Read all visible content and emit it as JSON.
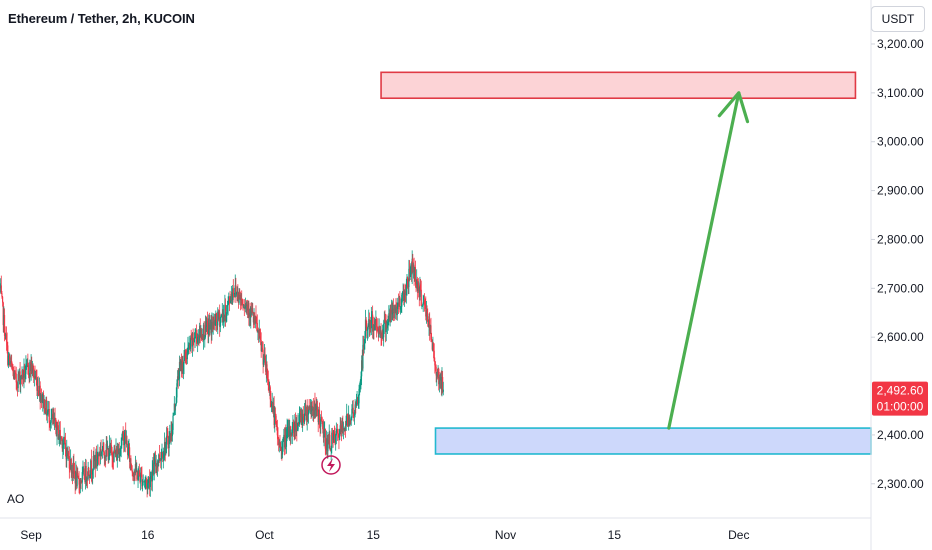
{
  "header": {
    "title": "Ethereum / Tether, 2h, KUCOIN"
  },
  "axis": {
    "currency": "USDT"
  },
  "indicator": {
    "label": "AO"
  },
  "last_price": {
    "value": "2,492.60",
    "countdown": "01:00:00",
    "color": "#f23645"
  },
  "colors": {
    "up": "#089981",
    "down": "#f23645",
    "arrow": "#4caf50",
    "resistance_fill": "#fcd3d6",
    "resistance_stroke": "#e03a45",
    "support_fill": "#cdd8fb",
    "support_stroke": "#22b8d0"
  },
  "chart_data": {
    "type": "candlestick",
    "title": "Ethereum / Tether, 2h, KUCOIN",
    "y_unit": "USDT",
    "ylim": [
      2230,
      3290
    ],
    "y_ticks": [
      {
        "value": 3200,
        "label": "3,200.00"
      },
      {
        "value": 3100,
        "label": "3,100.00"
      },
      {
        "value": 3000,
        "label": "3,000.00"
      },
      {
        "value": 2900,
        "label": "2,900.00"
      },
      {
        "value": 2800,
        "label": "2,800.00"
      },
      {
        "value": 2700,
        "label": "2,700.00"
      },
      {
        "value": 2600,
        "label": "2,600.00"
      },
      {
        "value": 2400,
        "label": "2,400.00"
      },
      {
        "value": 2300,
        "label": "2,300.00"
      }
    ],
    "x_ticks": [
      {
        "date": "2024-09-01",
        "label": "Sep"
      },
      {
        "date": "2024-09-16",
        "label": "16"
      },
      {
        "date": "2024-10-01",
        "label": "Oct"
      },
      {
        "date": "2024-10-15",
        "label": "15"
      },
      {
        "date": "2024-11-01",
        "label": "Nov"
      },
      {
        "date": "2024-11-15",
        "label": "15"
      },
      {
        "date": "2024-12-01",
        "label": "Dec"
      }
    ],
    "xlim": [
      "2024-08-28",
      "2024-12-18"
    ],
    "price_path": [
      [
        "2024-08-28",
        2700
      ],
      [
        "2024-08-29",
        2560
      ],
      [
        "2024-08-30",
        2510
      ],
      [
        "2024-09-01",
        2540
      ],
      [
        "2024-09-03",
        2450
      ],
      [
        "2024-09-05",
        2390
      ],
      [
        "2024-09-07",
        2300
      ],
      [
        "2024-09-09",
        2340
      ],
      [
        "2024-09-10",
        2370
      ],
      [
        "2024-09-12",
        2360
      ],
      [
        "2024-09-13",
        2400
      ],
      [
        "2024-09-14",
        2330
      ],
      [
        "2024-09-16",
        2300
      ],
      [
        "2024-09-17",
        2340
      ],
      [
        "2024-09-19",
        2400
      ],
      [
        "2024-09-20",
        2530
      ],
      [
        "2024-09-22",
        2600
      ],
      [
        "2024-09-24",
        2620
      ],
      [
        "2024-09-26",
        2650
      ],
      [
        "2024-09-27",
        2700
      ],
      [
        "2024-09-28",
        2680
      ],
      [
        "2024-09-29",
        2660
      ],
      [
        "2024-09-30",
        2620
      ],
      [
        "2024-10-01",
        2550
      ],
      [
        "2024-10-02",
        2460
      ],
      [
        "2024-10-03",
        2370
      ],
      [
        "2024-10-04",
        2400
      ],
      [
        "2024-10-05",
        2420
      ],
      [
        "2024-10-06",
        2440
      ],
      [
        "2024-10-07",
        2460
      ],
      [
        "2024-10-08",
        2440
      ],
      [
        "2024-10-09",
        2380
      ],
      [
        "2024-10-10",
        2390
      ],
      [
        "2024-10-11",
        2410
      ],
      [
        "2024-10-12",
        2440
      ],
      [
        "2024-10-13",
        2460
      ],
      [
        "2024-10-14",
        2620
      ],
      [
        "2024-10-15",
        2630
      ],
      [
        "2024-10-16",
        2610
      ],
      [
        "2024-10-17",
        2640
      ],
      [
        "2024-10-18",
        2660
      ],
      [
        "2024-10-19",
        2690
      ],
      [
        "2024-10-20",
        2750
      ],
      [
        "2024-10-21",
        2690
      ],
      [
        "2024-10-22",
        2640
      ],
      [
        "2024-10-23",
        2540
      ],
      [
        "2024-10-24",
        2492.6
      ]
    ],
    "drawings": [
      {
        "kind": "rectangle",
        "role": "resistance-zone",
        "from": "2024-10-16",
        "to": "2024-12-16",
        "y_low": 3089,
        "y_high": 3142
      },
      {
        "kind": "rectangle",
        "role": "support-zone",
        "from": "2024-10-23",
        "to": "2024-12-18",
        "y_low": 2361,
        "y_high": 2414
      },
      {
        "kind": "arrow",
        "role": "projection",
        "from": {
          "date": "2024-11-22",
          "value": 2414
        },
        "to": {
          "date": "2024-12-01",
          "value": 3100
        }
      }
    ]
  }
}
